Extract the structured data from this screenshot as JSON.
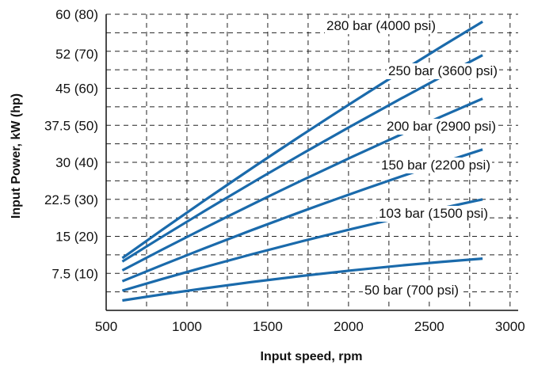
{
  "chart_data": {
    "type": "line",
    "title": "",
    "xlabel": "Input speed, rpm",
    "ylabel": "Input Power, kW (hp)",
    "xlim": [
      500,
      3050
    ],
    "ylim": [
      0,
      60
    ],
    "grid": true,
    "x_ticks": [
      {
        "value": 500,
        "label": "500"
      },
      {
        "value": 1000,
        "label": "1000"
      },
      {
        "value": 1500,
        "label": "1500"
      },
      {
        "value": 2000,
        "label": "2000"
      },
      {
        "value": 2500,
        "label": "2500"
      },
      {
        "value": 3000,
        "label": "3000"
      }
    ],
    "y_ticks": [
      {
        "value": 7.5,
        "label": "7.5 (10)"
      },
      {
        "value": 15,
        "label": "15 (20)"
      },
      {
        "value": 22.5,
        "label": "22.5 (30)"
      },
      {
        "value": 30,
        "label": "30 (40)"
      },
      {
        "value": 37.5,
        "label": "37.5 (50)"
      },
      {
        "value": 45,
        "label": "45 (60)"
      },
      {
        "value": 52,
        "label": "52 (70)"
      },
      {
        "value": 60,
        "label": "60 (80)"
      }
    ],
    "line_color": "#1a6aab",
    "series": [
      {
        "name": "280 bar (4000 psi)",
        "x": [
          600,
          2830
        ],
        "y": [
          10.6,
          58.5
        ]
      },
      {
        "name": "250 bar (3600 psi)",
        "x": [
          600,
          2830
        ],
        "y": [
          9.9,
          51.7
        ]
      },
      {
        "name": "200 bar (2900 psi)",
        "x": [
          600,
          2830
        ],
        "y": [
          8.1,
          42.9
        ]
      },
      {
        "name": "150 bar (2200 psi)",
        "x": [
          600,
          2830
        ],
        "y": [
          5.9,
          32.6
        ]
      },
      {
        "name": "103 bar (1500 psi)",
        "x": [
          600,
          2830
        ],
        "y": [
          4.0,
          22.5
        ]
      },
      {
        "name": "50 bar (700 psi)",
        "x": [
          600,
          2830
        ],
        "y": [
          2.0,
          10.5
        ]
      }
    ]
  }
}
